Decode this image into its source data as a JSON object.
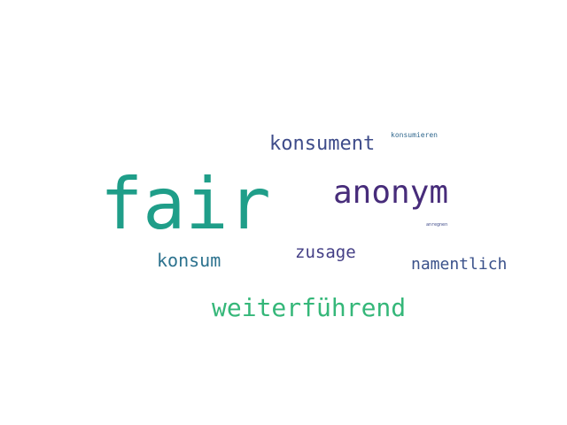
{
  "words": [
    {
      "text": "fair",
      "color": "#1f9e89"
    },
    {
      "text": "anonym",
      "color": "#472c7a"
    },
    {
      "text": "konsument",
      "color": "#3e4c8a"
    },
    {
      "text": "konsumieren",
      "color": "#31688e"
    },
    {
      "text": "anregnen",
      "color": "#3e4a89"
    },
    {
      "text": "zusage",
      "color": "#433e85"
    },
    {
      "text": "konsum",
      "color": "#2c728e"
    },
    {
      "text": "namentlich",
      "color": "#3b528b"
    },
    {
      "text": "weiterführend",
      "color": "#35b779"
    }
  ]
}
